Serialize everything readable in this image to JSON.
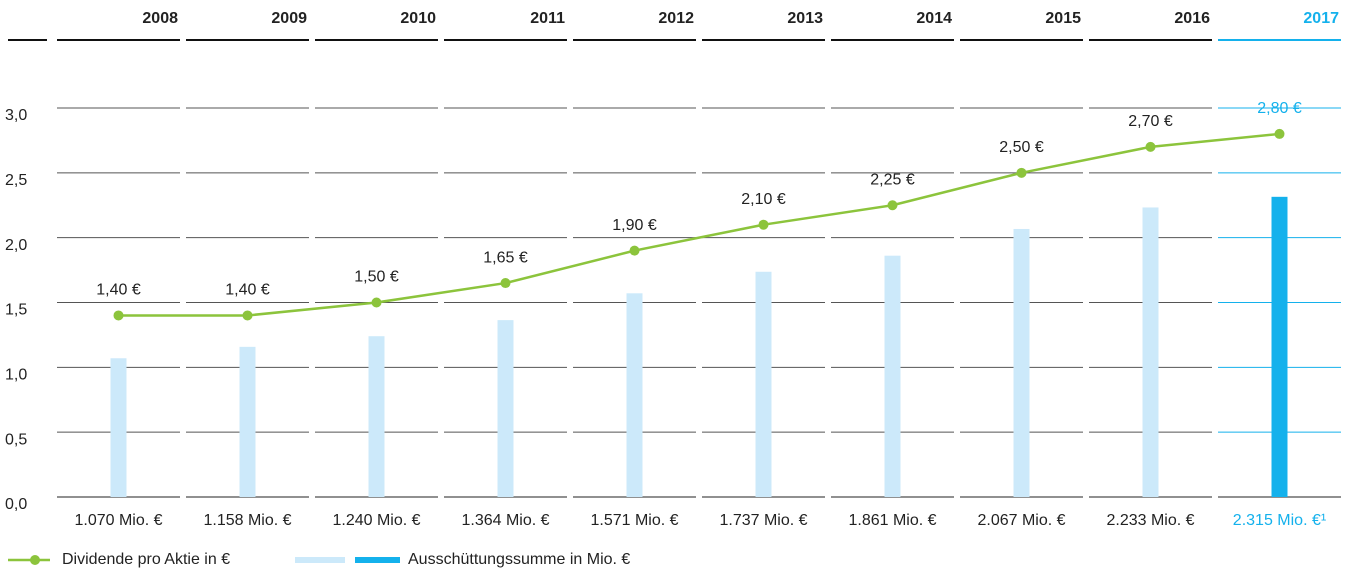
{
  "chart_data": {
    "type": "line_bar",
    "categories": [
      "2008",
      "2009",
      "2010",
      "2011",
      "2012",
      "2013",
      "2014",
      "2015",
      "2016",
      "2017"
    ],
    "ylim": [
      0,
      3
    ],
    "yticks": [
      {
        "value": 0,
        "label": "0,0"
      },
      {
        "value": 0.5,
        "label": "0,5"
      },
      {
        "value": 1,
        "label": "1,0"
      },
      {
        "value": 1.5,
        "label": "1,5"
      },
      {
        "value": 2,
        "label": "2,0"
      },
      {
        "value": 2.5,
        "label": "2,5"
      },
      {
        "value": 3,
        "label": "3,0"
      }
    ],
    "y2lim": [
      0,
      3000
    ],
    "grid": true,
    "highlight": 9,
    "highlight_color": "#14b1ec",
    "series": [
      {
        "name": "Dividende pro Aktie in €",
        "type": "line",
        "color": "#8cc43c",
        "values": [
          1.4,
          1.4,
          1.5,
          1.65,
          1.9,
          2.1,
          2.25,
          2.5,
          2.7,
          2.8
        ],
        "value_labels": [
          "1,40 €",
          "1,40 €",
          "1,50 €",
          "1,65 €",
          "1,90 €",
          "2,10 €",
          "2,25 €",
          "2,50 €",
          "2,70 €",
          "2,80 €"
        ]
      },
      {
        "name": "Ausschüttungssumme in Mio. €",
        "type": "bar",
        "axis": "y2",
        "color": "#cce9fa",
        "values": [
          1070,
          1158,
          1240,
          1364,
          1571,
          1737,
          1861,
          2067,
          2233,
          2315
        ],
        "value_labels": [
          "1.070 Mio. €",
          "1.158 Mio. €",
          "1.240 Mio. €",
          "1.364 Mio. €",
          "1.571 Mio. €",
          "1.737 Mio. €",
          "1.861 Mio. €",
          "2.067 Mio. €",
          "2.233 Mio. €",
          "2.315 Mio. €¹"
        ]
      }
    ]
  }
}
